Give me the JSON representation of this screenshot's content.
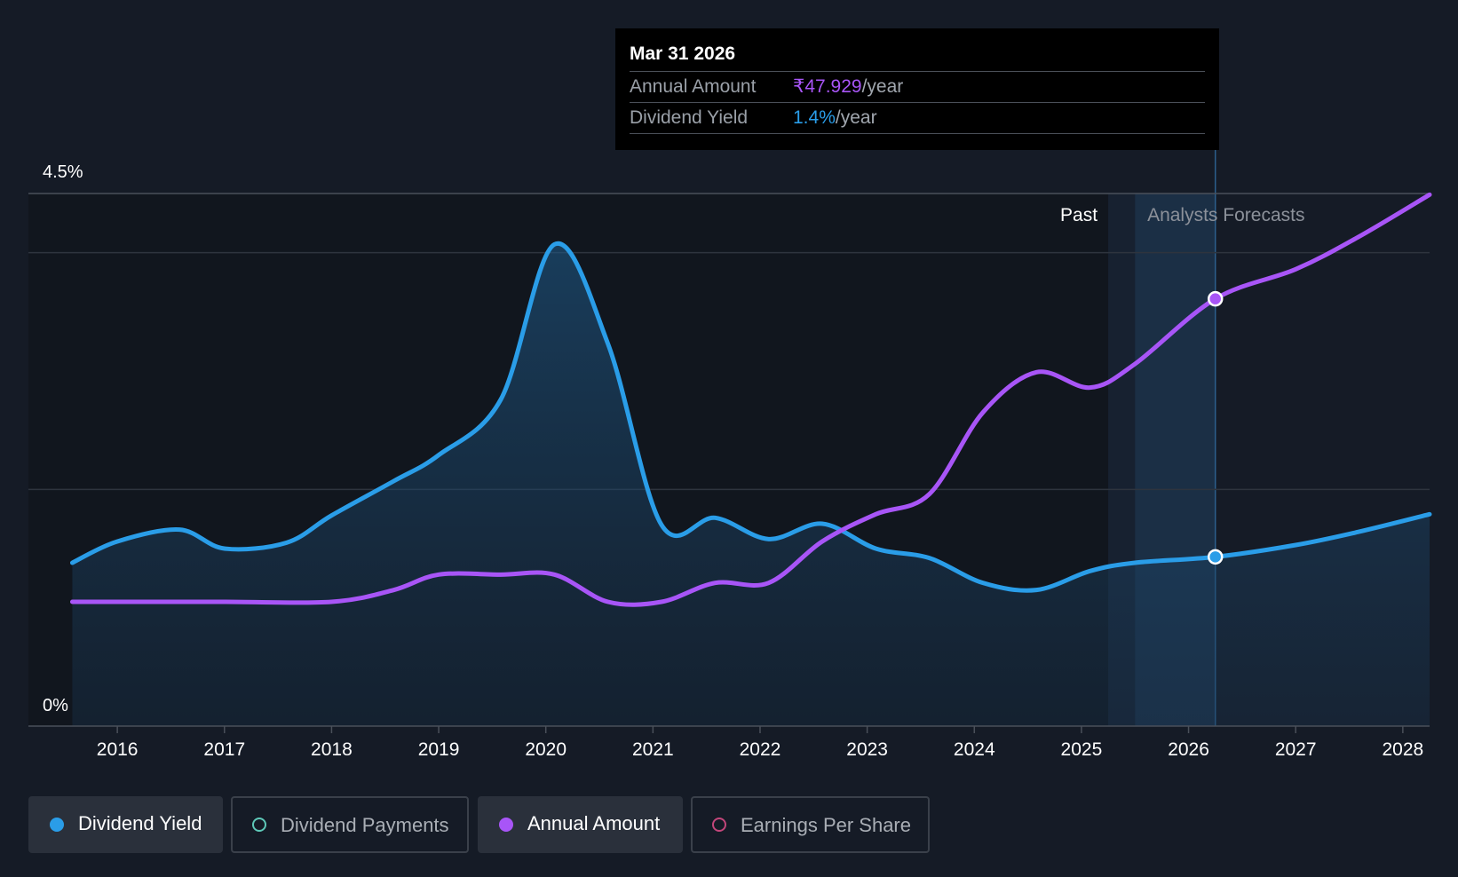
{
  "tooltip": {
    "date": "Mar 31 2026",
    "rows": [
      {
        "label": "Annual Amount",
        "value": "₹47.929",
        "unit": "/year"
      },
      {
        "label": "Dividend Yield",
        "value": "1.4%",
        "unit": "/year"
      }
    ]
  },
  "legend": [
    {
      "label": "Dividend Yield",
      "active": true,
      "color": "#2a9de8",
      "filled": true
    },
    {
      "label": "Dividend Payments",
      "active": false,
      "color": "#5ec8b8",
      "filled": false
    },
    {
      "label": "Annual Amount",
      "active": true,
      "color": "#a855f7",
      "filled": true
    },
    {
      "label": "Earnings Per Share",
      "active": false,
      "color": "#c2467a",
      "filled": false
    }
  ],
  "colors": {
    "background": "#151b26",
    "yield": "#2a9de8",
    "annual": "#a855f7",
    "grid": "#2e343e",
    "text": "#ffffff",
    "muted": "#8c919a"
  },
  "chart_data": {
    "type": "line",
    "ylim": [
      0,
      4.5
    ],
    "y_tick_labels": [
      {
        "label": "4.5%",
        "value": 4.5
      },
      {
        "label": "0%",
        "value": 0
      }
    ],
    "gridlines": [
      4.5,
      4.0,
      2.0
    ],
    "x_ticks": [
      2016,
      2017,
      2018,
      2019,
      2020,
      2021,
      2022,
      2023,
      2024,
      2025,
      2026,
      2027,
      2028
    ],
    "xlim": [
      2015.17,
      2028.25
    ],
    "region_labels": {
      "past": "Past",
      "forecast": "Analysts Forecasts"
    },
    "past_end": 2025.25,
    "forecast_band": [
      2025.5,
      2026.25
    ],
    "hover_x": 2026.25,
    "series": [
      {
        "name": "Dividend Yield",
        "color": "#2a9de8",
        "filled": true,
        "x": [
          2015.58,
          2016.0,
          2016.58,
          2017.0,
          2017.58,
          2018.0,
          2018.58,
          2019.0,
          2019.58,
          2020.08,
          2020.58,
          2021.08,
          2021.58,
          2022.08,
          2022.58,
          2023.08,
          2023.58,
          2024.08,
          2024.58,
          2025.08,
          2025.5,
          2026.25,
          2027.0,
          2027.58,
          2028.25
        ],
        "y": [
          1.38,
          1.56,
          1.66,
          1.5,
          1.55,
          1.78,
          2.07,
          2.29,
          2.76,
          4.07,
          3.23,
          1.7,
          1.76,
          1.58,
          1.71,
          1.5,
          1.42,
          1.21,
          1.15,
          1.31,
          1.38,
          1.43,
          1.53,
          1.64,
          1.79
        ]
      },
      {
        "name": "Annual Amount",
        "color": "#a855f7",
        "filled": false,
        "x": [
          2015.58,
          2016.0,
          2017.0,
          2018.0,
          2018.58,
          2019.0,
          2019.58,
          2020.08,
          2020.58,
          2021.08,
          2021.58,
          2022.08,
          2022.58,
          2023.08,
          2023.58,
          2024.08,
          2024.58,
          2025.08,
          2025.5,
          2026.25,
          2027.0,
          2027.58,
          2028.25
        ],
        "y": [
          1.05,
          1.05,
          1.05,
          1.05,
          1.15,
          1.28,
          1.28,
          1.28,
          1.05,
          1.05,
          1.21,
          1.21,
          1.56,
          1.79,
          1.96,
          2.65,
          2.99,
          2.86,
          3.06,
          3.61,
          3.86,
          4.13,
          4.49
        ]
      }
    ],
    "highlight_points": [
      {
        "series": "Annual Amount",
        "x": 2026.25,
        "y": 3.61
      },
      {
        "series": "Dividend Yield",
        "x": 2026.25,
        "y": 1.43
      }
    ]
  }
}
